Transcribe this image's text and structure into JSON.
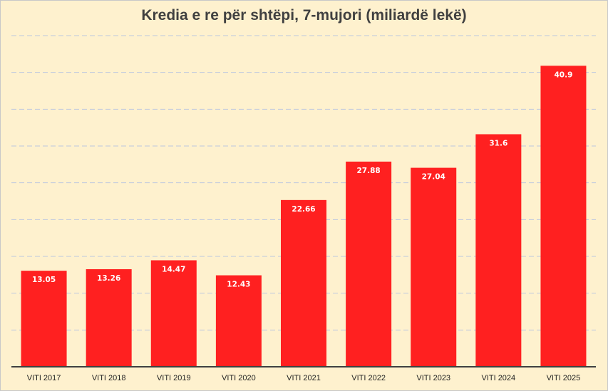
{
  "chart_data": {
    "type": "bar",
    "title": "Kredia e re për shtëpi, 7-mujori (miliardë lekë)",
    "categories": [
      "VITI 2017",
      "VITI 2018",
      "VITI 2019",
      "VITI 2020",
      "VITI 2021",
      "VITI 2022",
      "VITI 2023",
      "VITI 2024",
      "VITI 2025"
    ],
    "values": [
      13.05,
      13.26,
      14.47,
      12.43,
      22.66,
      27.88,
      27.04,
      31.6,
      40.9
    ],
    "data_labels": [
      "13.05",
      "13.26",
      "14.47",
      "12.43",
      "22.66",
      "27.88",
      "27.04",
      "31.6",
      "40.9"
    ],
    "ylim": [
      0,
      45
    ],
    "grid": true,
    "colors": {
      "bar": "#ff2020",
      "background": "#fef1ce",
      "grid": "#bcc7df",
      "label": "#ffffff",
      "axis": "#404040"
    }
  }
}
